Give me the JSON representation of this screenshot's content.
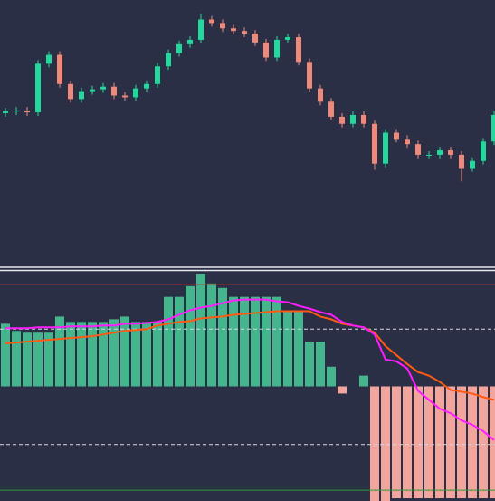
{
  "chart_data": [
    {
      "type": "candlestick",
      "open": [
        172,
        174,
        175,
        173,
        228,
        238,
        205,
        188,
        197,
        199,
        202,
        192,
        190,
        200,
        205,
        225,
        240,
        250,
        255,
        278,
        274,
        268,
        265,
        262,
        252,
        235,
        255,
        258,
        230,
        200,
        185,
        168,
        160,
        170,
        160,
        115,
        150,
        143,
        137,
        125,
        125,
        130,
        125,
        110,
        118,
        140
      ],
      "high": [
        178,
        179,
        179,
        232,
        242,
        242,
        209,
        201,
        203,
        206,
        206,
        196,
        204,
        209,
        229,
        244,
        254,
        259,
        284,
        282,
        278,
        272,
        269,
        266,
        256,
        259,
        262,
        262,
        234,
        204,
        189,
        172,
        174,
        174,
        164,
        154,
        154,
        147,
        141,
        129,
        134,
        134,
        129,
        122,
        144,
        174
      ],
      "low": [
        168,
        170,
        169,
        169,
        224,
        201,
        184,
        184,
        193,
        195,
        188,
        186,
        186,
        196,
        201,
        221,
        236,
        246,
        251,
        270,
        264,
        261,
        258,
        248,
        231,
        231,
        251,
        226,
        196,
        181,
        164,
        156,
        156,
        156,
        108,
        111,
        139,
        133,
        121,
        121,
        121,
        121,
        95,
        106,
        114,
        136
      ],
      "close": [
        174,
        175,
        173,
        228,
        238,
        205,
        188,
        197,
        199,
        202,
        192,
        190,
        200,
        205,
        225,
        240,
        250,
        255,
        278,
        274,
        268,
        265,
        262,
        252,
        235,
        255,
        258,
        230,
        200,
        185,
        168,
        160,
        170,
        160,
        115,
        150,
        143,
        137,
        125,
        125,
        130,
        125,
        110,
        118,
        140,
        170
      ],
      "up_color": "#22d89c",
      "down_color": "#ef8a7a",
      "ylim": [
        0,
        300
      ]
    },
    {
      "type": "bar",
      "values": [
        70,
        62,
        60,
        60,
        60,
        78,
        72,
        72,
        72,
        72,
        75,
        78,
        72,
        72,
        72,
        100,
        100,
        112,
        126,
        115,
        110,
        100,
        100,
        100,
        100,
        100,
        85,
        85,
        50,
        50,
        22,
        -8,
        0,
        12,
        -128,
        -128,
        -125,
        -125,
        -125,
        -125,
        -125,
        -125,
        -125,
        -125,
        -125,
        -125
      ],
      "pos_color": "#45b58e",
      "neg_color": "#f2a59c",
      "series": [
        {
          "color": "#ff5a14",
          "values": [
            48,
            49,
            50,
            51,
            52,
            53,
            54,
            55,
            56,
            58,
            60,
            62,
            63,
            64,
            68,
            70,
            72,
            73,
            76,
            77,
            78,
            80,
            81,
            82,
            83,
            84,
            84,
            84,
            84,
            78,
            75,
            70,
            68,
            66,
            60,
            45,
            35,
            25,
            16,
            12,
            5,
            -4,
            -6,
            -8,
            -12,
            -15
          ]
        },
        {
          "color": "#ff1dff",
          "values": [
            65,
            65,
            65,
            66,
            66,
            66,
            67,
            67,
            67,
            68,
            68,
            70,
            70,
            71,
            72,
            75,
            80,
            85,
            88,
            90,
            93,
            96,
            97,
            97,
            97,
            95,
            94,
            90,
            87,
            83,
            80,
            72,
            68,
            66,
            58,
            30,
            28,
            20,
            -5,
            -15,
            -25,
            -30,
            -38,
            -43,
            -50,
            -60
          ]
        }
      ],
      "hlines": [
        {
          "value": 114,
          "color": "#c0282a",
          "style": "solid"
        },
        {
          "value": 64,
          "color": "#d8d8e0",
          "style": "dashed"
        },
        {
          "value": -65,
          "color": "#d8d8e0",
          "style": "dashed"
        },
        {
          "value": -116,
          "color": "#2e9a3a",
          "style": "solid"
        }
      ],
      "ylim": [
        -128,
        127
      ]
    }
  ]
}
